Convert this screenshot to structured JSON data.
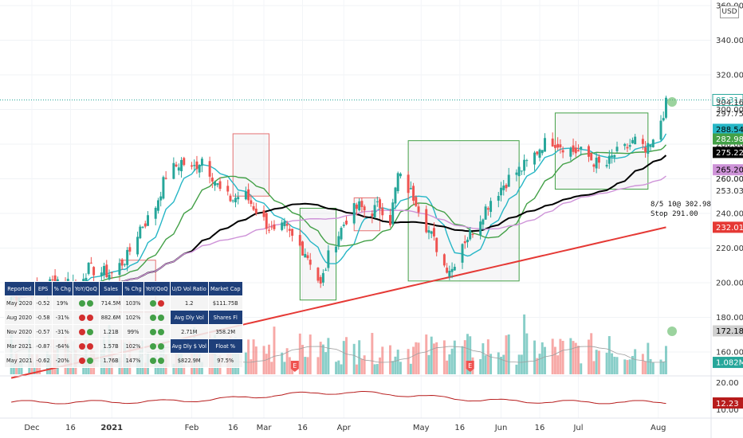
{
  "currency_label": "USD",
  "chart_data": {
    "type": "candlestick",
    "y_ticks": [
      "360.00",
      "340.00",
      "320.00",
      "300.00",
      "280.00",
      "260.00",
      "240.00",
      "220.00",
      "200.00",
      "180.00",
      "160.00"
    ],
    "x_ticks": [
      "Dec",
      "16",
      "2021",
      "Feb",
      "16",
      "Mar",
      "16",
      "Apr",
      "May",
      "16",
      "Jun",
      "16",
      "Jul",
      "Aug"
    ],
    "price_tags": [
      {
        "label": "05:31:11",
        "value": 305.5,
        "bg": "#ffffff",
        "fg": "#26a69a",
        "border": "#26a69a"
      },
      {
        "label": "304.16",
        "value": 304.16,
        "bg": "#ffffff",
        "fg": "#333333",
        "border": ""
      },
      {
        "label": "297.75",
        "value": 297.75,
        "bg": "#ffffff",
        "fg": "#333333",
        "border": ""
      },
      {
        "label": "288.54",
        "value": 288.54,
        "bg": "#26b6c6",
        "fg": "#000000",
        "border": ""
      },
      {
        "label": "282.98",
        "value": 282.98,
        "bg": "#43a047",
        "fg": "#ffffff",
        "border": ""
      },
      {
        "label": "275.22",
        "value": 275.22,
        "bg": "#000000",
        "fg": "#ffffff",
        "border": ""
      },
      {
        "label": "265.20",
        "value": 265.2,
        "bg": "#ce93d8",
        "fg": "#000000",
        "border": ""
      },
      {
        "label": "260.00",
        "value": 260.0,
        "bg": "#ffffff",
        "fg": "#333333",
        "border": ""
      },
      {
        "label": "253.03",
        "value": 253.03,
        "bg": "#ffffff",
        "fg": "#333333",
        "border": ""
      },
      {
        "label": "232.01",
        "value": 232.01,
        "bg": "#e53935",
        "fg": "#ffffff",
        "border": ""
      },
      {
        "label": "172.18",
        "value": 172.18,
        "bg": "#d0d0d0",
        "fg": "#000000",
        "border": ""
      },
      {
        "label": "1.082M",
        "value": 154.0,
        "bg": "#26a69a",
        "fg": "#ffffff",
        "border": ""
      }
    ],
    "lower_axis": {
      "ticks": [
        "20.00",
        "10.00"
      ],
      "last_tag": "12.23"
    },
    "boxes": [
      {
        "start": "Jan 4",
        "end": "Jan 18",
        "low": 183,
        "high": 213,
        "color": "#e57373"
      },
      {
        "start": "Feb 17",
        "end": "Mar 3",
        "low": 250,
        "high": 286,
        "color": "#e57373"
      },
      {
        "start": "Mar 15",
        "end": "Mar 29",
        "low": 190,
        "high": 243,
        "color": "#43a047"
      },
      {
        "start": "Apr 5",
        "end": "Apr 15",
        "low": 230,
        "high": 249,
        "color": "#e57373"
      },
      {
        "start": "Apr 26",
        "end": "Jun 8",
        "low": 201,
        "high": 282,
        "color": "#43a047"
      },
      {
        "start": "Jun 22",
        "end": "Jul 28",
        "low": 254,
        "high": 298,
        "color": "#43a047"
      }
    ],
    "moving_averages": [
      {
        "color": "#26b6c6",
        "period": "10"
      },
      {
        "color": "#43a047",
        "period": "21"
      },
      {
        "color": "#000000",
        "period": "50"
      },
      {
        "color": "#ce93d8",
        "period": "65"
      },
      {
        "color": "#e53935",
        "period": "200"
      }
    ],
    "annotation": "8/5 10@ 302.98\nStop 291.00"
  },
  "fundamentals_table": {
    "headers": [
      "Reported",
      "EPS",
      "% Chg",
      "YoY/QoQ",
      "Sales",
      "% Chg",
      "YoY/QoQ"
    ],
    "rows": [
      {
        "reported": "May 2020",
        "eps": "-0.52",
        "eps_chg": "19%",
        "eps_neg": false,
        "yoy": [
          "#43a047",
          "#43a047"
        ],
        "sales": "714.5M",
        "sales_chg": "103%",
        "sales_neg": false,
        "sales_yoy": [
          "#43a047",
          "#d32f2f"
        ]
      },
      {
        "reported": "Aug 2020",
        "eps": "-0.58",
        "eps_chg": "-31%",
        "eps_neg": true,
        "yoy": [
          "#d32f2f",
          "#d32f2f"
        ],
        "sales": "882.6M",
        "sales_chg": "102%",
        "sales_neg": false,
        "sales_yoy": [
          "#43a047",
          "#43a047"
        ]
      },
      {
        "reported": "Nov 2020",
        "eps": "-0.57",
        "eps_chg": "-31%",
        "eps_neg": true,
        "yoy": [
          "#d32f2f",
          "#43a047"
        ],
        "sales": "1.21B",
        "sales_chg": "99%",
        "sales_neg": false,
        "sales_yoy": [
          "#43a047",
          "#43a047"
        ]
      },
      {
        "reported": "Mar 2021",
        "eps": "-0.87",
        "eps_chg": "-64%",
        "eps_neg": true,
        "yoy": [
          "#d32f2f",
          "#d32f2f"
        ],
        "sales": "1.57B",
        "sales_chg": "102%",
        "sales_neg": false,
        "sales_yoy": [
          "#43a047",
          "#43a047"
        ]
      },
      {
        "reported": "May 2021",
        "eps": "-0.62",
        "eps_chg": "-20%",
        "eps_neg": true,
        "yoy": [
          "#d32f2f",
          "#43a047"
        ],
        "sales": "1.76B",
        "sales_chg": "147%",
        "sales_neg": false,
        "sales_yoy": [
          "#43a047",
          "#43a047"
        ]
      }
    ],
    "right_headers": [
      "U/D Vol Ratio",
      "Market Cap"
    ],
    "right_rows": [
      {
        "a": "1.2",
        "b": "$111.75B",
        "style": "light"
      },
      {
        "a": "Avg Dly Vol",
        "b": "Shares Fl",
        "style": "dark"
      },
      {
        "a": "2.71M",
        "b": "358.2M",
        "style": "light"
      },
      {
        "a": "Avg Dly $ Vol",
        "b": "Float %",
        "style": "dark"
      },
      {
        "a": "$822.9M",
        "b": "97.5%",
        "style": "light"
      }
    ]
  }
}
